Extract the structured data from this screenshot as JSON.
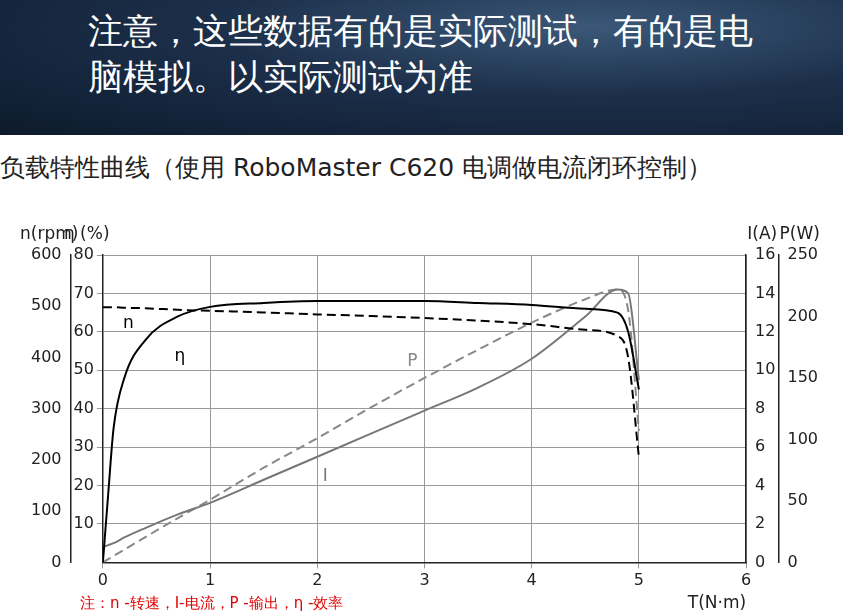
{
  "header": {
    "notice": "注意，这些数据有的是实际测试，有的是电脑模拟。以实际测试为准"
  },
  "chart_data": {
    "type": "line",
    "title": "负载特性曲线（使用 RoboMaster C620 电调做电流闭环控制）",
    "annotations": [
      "注：n -转速，I-电流，P -输出，η -效率"
    ],
    "xlabel": "T(N·m)",
    "ylabel": "n(rpm)",
    "y2label": "η (%)",
    "y3label": "I(A)",
    "y4label": "P(W)",
    "x": [
      0,
      0.05,
      0.1,
      0.2,
      0.4,
      0.7,
      1,
      1.5,
      2,
      2.5,
      3,
      3.5,
      4,
      4.5,
      4.8,
      4.9,
      5.0
    ],
    "xlim": [
      0,
      6
    ],
    "xticks": [
      0,
      1,
      2,
      3,
      4,
      5,
      6
    ],
    "ylim": [
      0,
      600
    ],
    "yticks": [
      0,
      100,
      200,
      300,
      400,
      500,
      600
    ],
    "y2lim": [
      0,
      80
    ],
    "y2ticks": [
      10,
      20,
      30,
      40,
      50,
      60,
      70,
      80
    ],
    "y3lim": [
      0,
      16
    ],
    "y3ticks": [
      0,
      2,
      4,
      6,
      8,
      10,
      12,
      14,
      16
    ],
    "y4lim": [
      0,
      250
    ],
    "y4ticks": [
      0,
      50,
      100,
      150,
      200,
      250
    ],
    "grid": true,
    "series": [
      {
        "name": "n",
        "color": "#000000",
        "line_style": "dashed",
        "axis": "y",
        "values": [
          498,
          498,
          498,
          497,
          496,
          493,
          491,
          488,
          484,
          481,
          477,
          472,
          465,
          454,
          442,
          400,
          205
        ]
      },
      {
        "name": "η",
        "color": "#000000",
        "line_style": "solid",
        "axis": "y2",
        "values": [
          0,
          18,
          35,
          48,
          58,
          64,
          66.5,
          67.5,
          68,
          68,
          68,
          67.5,
          67,
          66,
          65,
          60,
          45
        ]
      },
      {
        "name": "I",
        "color": "#777777",
        "line_style": "solid",
        "axis": "y3",
        "values": [
          0.8,
          0.9,
          1.0,
          1.3,
          1.8,
          2.5,
          3.1,
          4.3,
          5.5,
          6.7,
          7.9,
          9.1,
          10.6,
          12.8,
          14.2,
          14.0,
          9.5
        ]
      },
      {
        "name": "P",
        "color": "#888888",
        "line_style": "dashed",
        "axis": "y4",
        "values": [
          0,
          2.6,
          5.2,
          10.4,
          20.8,
          36,
          51,
          77,
          101,
          126,
          150,
          173,
          195,
          214,
          222,
          205,
          107
        ]
      }
    ]
  }
}
